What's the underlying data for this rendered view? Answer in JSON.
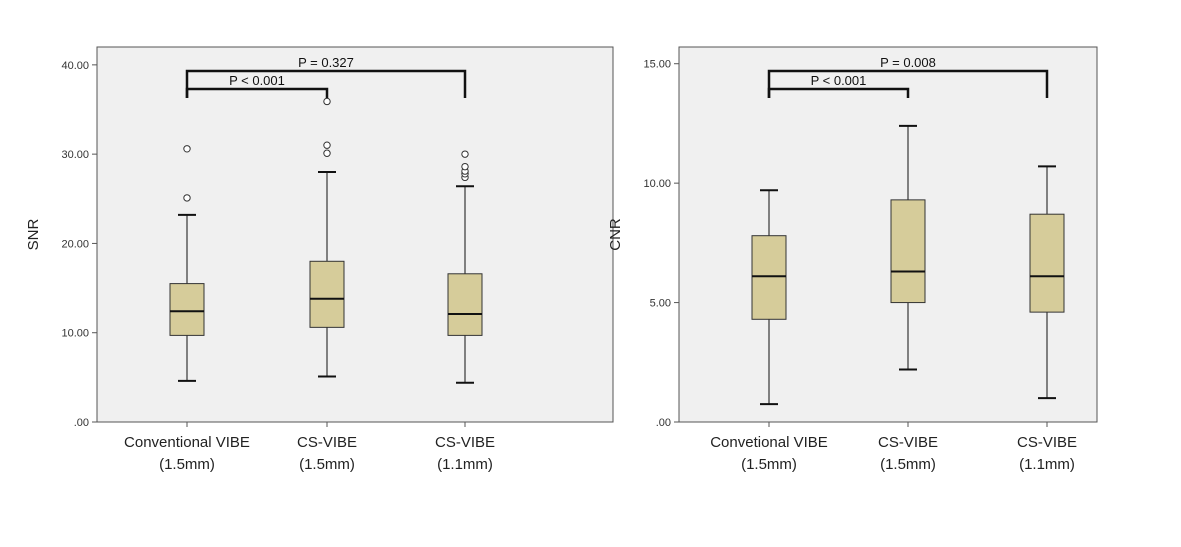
{
  "chart_data": [
    {
      "type": "box",
      "ylabel": "SNR",
      "ylim": [
        0,
        42
      ],
      "y_ticks": [
        ".00",
        "10.00",
        "20.00",
        "30.00",
        "40.00"
      ],
      "y_tick_values": [
        0,
        10,
        20,
        30,
        40
      ],
      "categories": [
        {
          "line1": "Conventional VIBE",
          "line2": "(1.5mm)"
        },
        {
          "line1": "CS-VIBE",
          "line2": "(1.5mm)"
        },
        {
          "line1": "CS-VIBE",
          "line2": "(1.1mm)"
        }
      ],
      "boxes": [
        {
          "whisker_low": 4.6,
          "q1": 9.7,
          "median": 12.4,
          "q3": 15.5,
          "whisker_high": 23.2,
          "outliers": [
            25.1,
            30.6
          ]
        },
        {
          "whisker_low": 5.1,
          "q1": 10.6,
          "median": 13.8,
          "q3": 18.0,
          "whisker_high": 28.0,
          "outliers": [
            30.1,
            31.0,
            35.9
          ]
        },
        {
          "whisker_low": 4.4,
          "q1": 9.7,
          "median": 12.1,
          "q3": 16.6,
          "whisker_high": 26.4,
          "outliers": [
            27.4,
            27.8,
            28.1,
            28.6,
            30.0
          ]
        }
      ],
      "comparisons": [
        {
          "from": 0,
          "to": 1,
          "label": "P < 0.001",
          "level": 1
        },
        {
          "from": 0,
          "to": 2,
          "label": "P = 0.327",
          "level": 2
        }
      ],
      "colors": {
        "box_fill": "#d6cc9a",
        "plot_bg": "#f0f0f0",
        "line": "#111111"
      }
    },
    {
      "type": "box",
      "ylabel": "CNR",
      "ylim": [
        0,
        15.7
      ],
      "y_ticks": [
        ".00",
        "5.00",
        "10.00",
        "15.00"
      ],
      "y_tick_values": [
        0,
        5,
        10,
        15
      ],
      "categories": [
        {
          "line1": "Convetional VIBE",
          "line2": "(1.5mm)"
        },
        {
          "line1": "CS-VIBE",
          "line2": "(1.5mm)"
        },
        {
          "line1": "CS-VIBE",
          "line2": "(1.1mm)"
        }
      ],
      "boxes": [
        {
          "whisker_low": 0.75,
          "q1": 4.3,
          "median": 6.1,
          "q3": 7.8,
          "whisker_high": 9.7,
          "outliers": []
        },
        {
          "whisker_low": 2.2,
          "q1": 5.0,
          "median": 6.3,
          "q3": 9.3,
          "whisker_high": 12.4,
          "outliers": []
        },
        {
          "whisker_low": 1.0,
          "q1": 4.6,
          "median": 6.1,
          "q3": 8.7,
          "whisker_high": 10.7,
          "outliers": []
        }
      ],
      "comparisons": [
        {
          "from": 0,
          "to": 1,
          "label": "P < 0.001",
          "level": 1
        },
        {
          "from": 0,
          "to": 2,
          "label": "P = 0.008",
          "level": 2
        }
      ],
      "colors": {
        "box_fill": "#d6cc9a",
        "plot_bg": "#f0f0f0",
        "line": "#111111"
      }
    }
  ]
}
